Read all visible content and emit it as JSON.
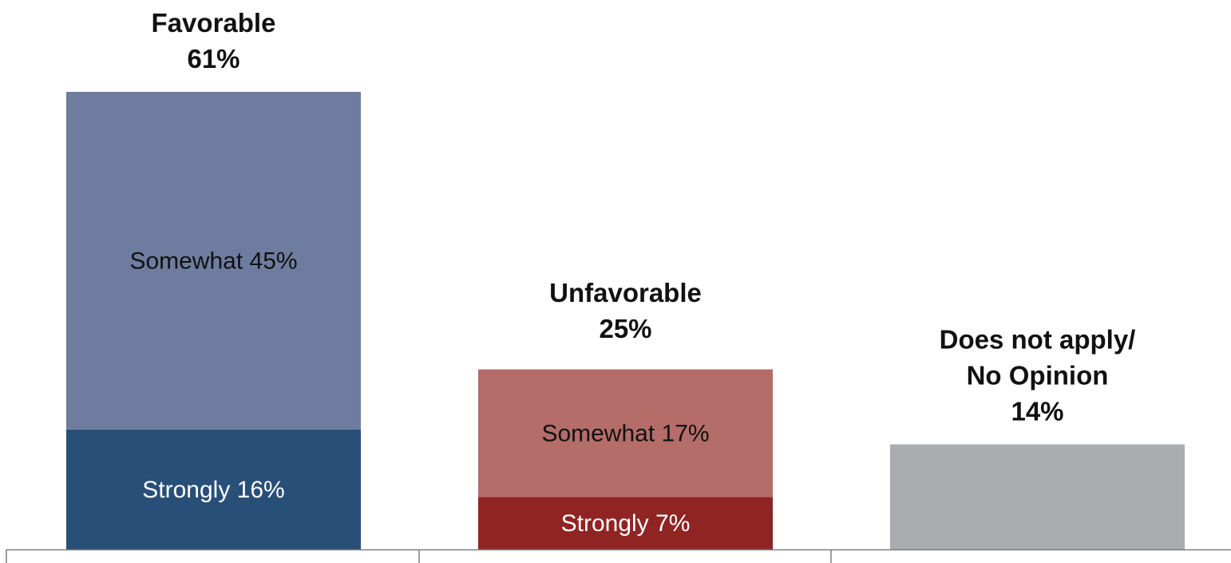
{
  "chart_data": {
    "type": "bar",
    "stacked": true,
    "ylim": [
      0,
      61
    ],
    "grid": false,
    "legend": "none",
    "categories": [
      {
        "header_lines": [
          "Favorable",
          "61%"
        ],
        "total": 61,
        "segments": [
          {
            "label": "Strongly 16%",
            "value": 16,
            "color": "#284f78",
            "text_color": "#ffffff"
          },
          {
            "label": "Somewhat 45%",
            "value": 45,
            "color": "#6e7d9f",
            "text_color": "#111111"
          }
        ]
      },
      {
        "header_lines": [
          "Unfavorable",
          "25%"
        ],
        "total": 25,
        "segments": [
          {
            "label": "Strongly 7%",
            "value": 7,
            "color": "#902423",
            "text_color": "#ffffff"
          },
          {
            "label": "Somewhat 17%",
            "value": 17,
            "color": "#b46d69",
            "text_color": "#111111"
          }
        ]
      },
      {
        "header_lines": [
          "Does not apply/",
          "No Opinion",
          "14%"
        ],
        "total": 14,
        "segments": [
          {
            "label": "",
            "value": 14,
            "color": "#abacaf",
            "text_color": "#111111"
          }
        ]
      }
    ],
    "axis_color": "#7f7f7f"
  }
}
